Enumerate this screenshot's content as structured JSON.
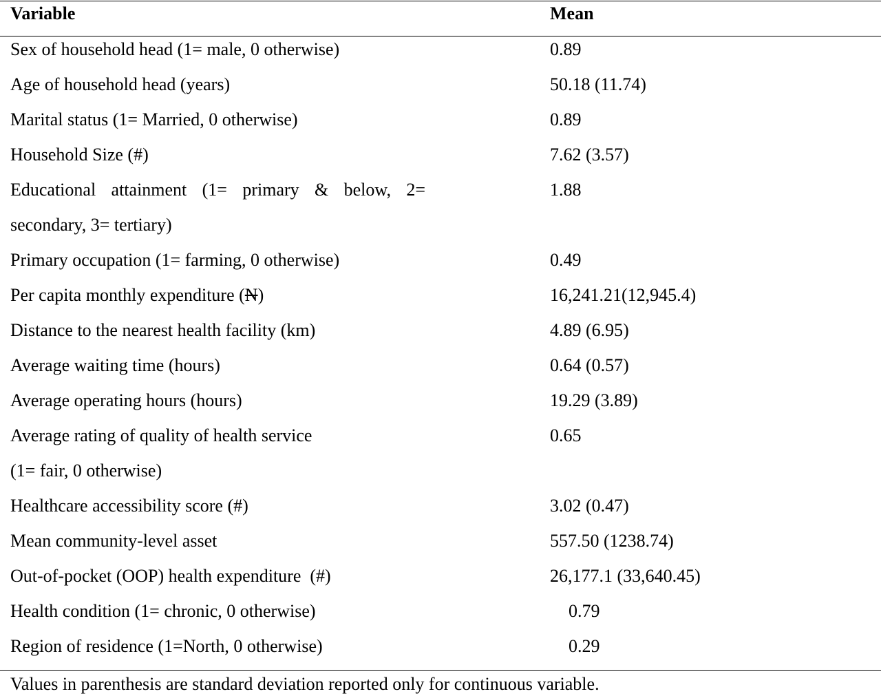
{
  "table": {
    "headers": {
      "variable": "Variable",
      "mean": "Mean"
    },
    "rows": [
      {
        "variable": "Sex of household head (1= male, 0 otherwise)",
        "mean": "0.89"
      },
      {
        "variable": "Age of household head (years)",
        "mean": "50.18 (11.74)"
      },
      {
        "variable": "Marital status (1= Married, 0 otherwise)",
        "mean": "0.89"
      },
      {
        "variable": "Household Size (#)",
        "mean": "7.62 (3.57)"
      },
      {
        "variable_line1": "Educational attainment (1= primary & below, 2=",
        "variable_line2": "secondary, 3= tertiary)",
        "mean": "1.88"
      },
      {
        "variable": "Primary occupation (1= farming, 0 otherwise)",
        "mean": "0.49"
      },
      {
        "variable_prefix": "Per capita monthly expenditure (",
        "currency": "N",
        "variable_suffix": ")",
        "mean": "16,241.21(12,945.4)"
      },
      {
        "variable": "Distance to the nearest health facility (km)",
        "mean": "4.89 (6.95)"
      },
      {
        "variable": "Average waiting time (hours)",
        "mean": "0.64 (0.57)"
      },
      {
        "variable": "Average operating hours (hours)",
        "mean": "19.29 (3.89)"
      },
      {
        "variable_line1": "Average rating of quality of health service",
        "variable_line2": "(1= fair, 0 otherwise)",
        "mean": "0.65"
      },
      {
        "variable": "Healthcare accessibility score (#)",
        "mean": "3.02 (0.47)"
      },
      {
        "variable": "Mean community-level asset",
        "mean": "557.50 (1238.74)"
      },
      {
        "variable": "Out-of-pocket (OOP) health expenditure  (#)",
        "mean": "26,177.1 (33,640.45)"
      },
      {
        "variable": "Health condition (1= chronic, 0 otherwise)",
        "mean": "0.79"
      },
      {
        "variable": "Region of residence (1=North, 0 otherwise)",
        "mean": "0.29"
      }
    ],
    "note": "Values in parenthesis are standard deviation reported only for continuous variable."
  }
}
